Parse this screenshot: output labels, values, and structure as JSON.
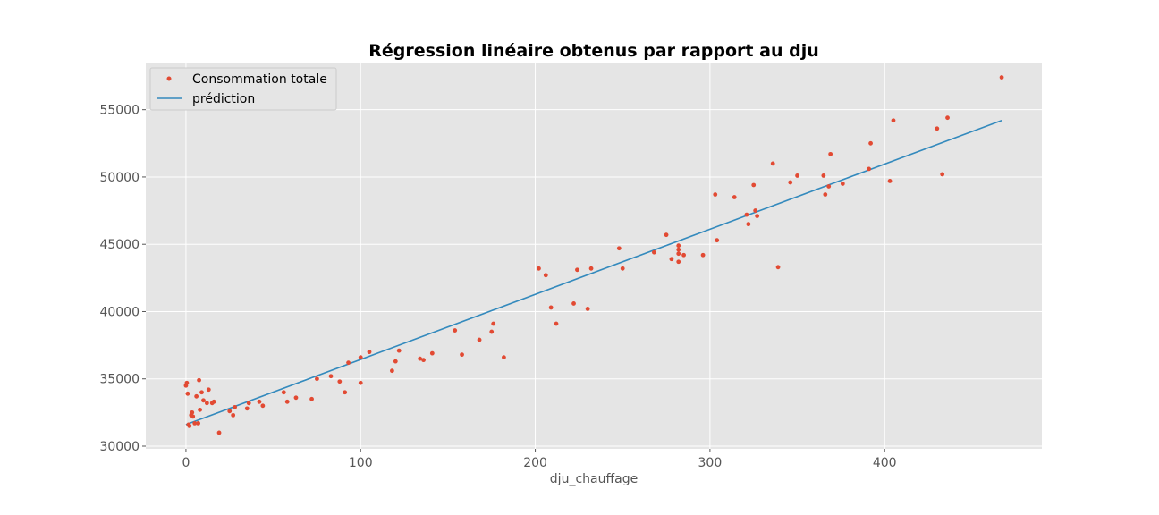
{
  "chart_data": {
    "type": "scatter",
    "title": "Régression linéaire obtenus par rapport au dju",
    "xlabel": "dju_chauffage",
    "ylabel": "",
    "xlim": [
      -23,
      490
    ],
    "ylim": [
      29800,
      58500
    ],
    "xticks": [
      0,
      100,
      200,
      300,
      400
    ],
    "yticks": [
      30000,
      35000,
      40000,
      45000,
      50000,
      55000
    ],
    "grid": true,
    "legend_position": "top-left",
    "colors": {
      "background": "#e5e5e5",
      "grid": "#ffffff",
      "points": "#e24a33",
      "line": "#348abd"
    },
    "series": [
      {
        "name": "Consommation totale",
        "kind": "scatter",
        "points": [
          [
            0,
            34500
          ],
          [
            0.5,
            34700
          ],
          [
            1,
            33900
          ],
          [
            1.5,
            31600
          ],
          [
            2,
            31500
          ],
          [
            3,
            32300
          ],
          [
            3.5,
            32500
          ],
          [
            4,
            32200
          ],
          [
            5,
            31700
          ],
          [
            6,
            33700
          ],
          [
            7,
            31700
          ],
          [
            7.5,
            34900
          ],
          [
            8,
            32700
          ],
          [
            9,
            34000
          ],
          [
            10,
            33400
          ],
          [
            12,
            33200
          ],
          [
            13,
            34200
          ],
          [
            15,
            33200
          ],
          [
            16,
            33300
          ],
          [
            19,
            31000
          ],
          [
            25,
            32600
          ],
          [
            27,
            32300
          ],
          [
            28,
            32900
          ],
          [
            35,
            32800
          ],
          [
            36,
            33200
          ],
          [
            42,
            33300
          ],
          [
            44,
            33000
          ],
          [
            56,
            34000
          ],
          [
            58,
            33300
          ],
          [
            63,
            33600
          ],
          [
            72,
            33500
          ],
          [
            75,
            35000
          ],
          [
            83,
            35200
          ],
          [
            88,
            34800
          ],
          [
            91,
            34000
          ],
          [
            93,
            36200
          ],
          [
            100,
            36600
          ],
          [
            100,
            34700
          ],
          [
            105,
            37000
          ],
          [
            118,
            35600
          ],
          [
            120,
            36300
          ],
          [
            122,
            37100
          ],
          [
            134,
            36500
          ],
          [
            136,
            36400
          ],
          [
            141,
            36900
          ],
          [
            154,
            38600
          ],
          [
            158,
            36800
          ],
          [
            168,
            37900
          ],
          [
            175,
            38500
          ],
          [
            176,
            39100
          ],
          [
            182,
            36600
          ],
          [
            202,
            43200
          ],
          [
            206,
            42700
          ],
          [
            209,
            40300
          ],
          [
            212,
            39100
          ],
          [
            222,
            40600
          ],
          [
            224,
            43100
          ],
          [
            230,
            40200
          ],
          [
            232,
            43200
          ],
          [
            248,
            44700
          ],
          [
            250,
            43200
          ],
          [
            268,
            44400
          ],
          [
            275,
            45700
          ],
          [
            278,
            43900
          ],
          [
            282,
            44900
          ],
          [
            282,
            44600
          ],
          [
            282,
            44300
          ],
          [
            282,
            43700
          ],
          [
            285,
            44200
          ],
          [
            296,
            44200
          ],
          [
            303,
            48700
          ],
          [
            304,
            45300
          ],
          [
            314,
            48500
          ],
          [
            321,
            47200
          ],
          [
            322,
            46500
          ],
          [
            325,
            49400
          ],
          [
            326,
            47500
          ],
          [
            327,
            47100
          ],
          [
            336,
            51000
          ],
          [
            339,
            43300
          ],
          [
            346,
            49600
          ],
          [
            350,
            50100
          ],
          [
            365,
            50100
          ],
          [
            366,
            48700
          ],
          [
            368,
            49300
          ],
          [
            369,
            51700
          ],
          [
            376,
            49500
          ],
          [
            391,
            50600
          ],
          [
            392,
            52500
          ],
          [
            403,
            49700
          ],
          [
            405,
            54200
          ],
          [
            430,
            53600
          ],
          [
            433,
            50200
          ],
          [
            436,
            54400
          ],
          [
            467,
            57400
          ]
        ]
      },
      {
        "name": "prédiction",
        "kind": "line",
        "points": [
          [
            0,
            31600
          ],
          [
            467,
            54200
          ]
        ]
      }
    ]
  }
}
